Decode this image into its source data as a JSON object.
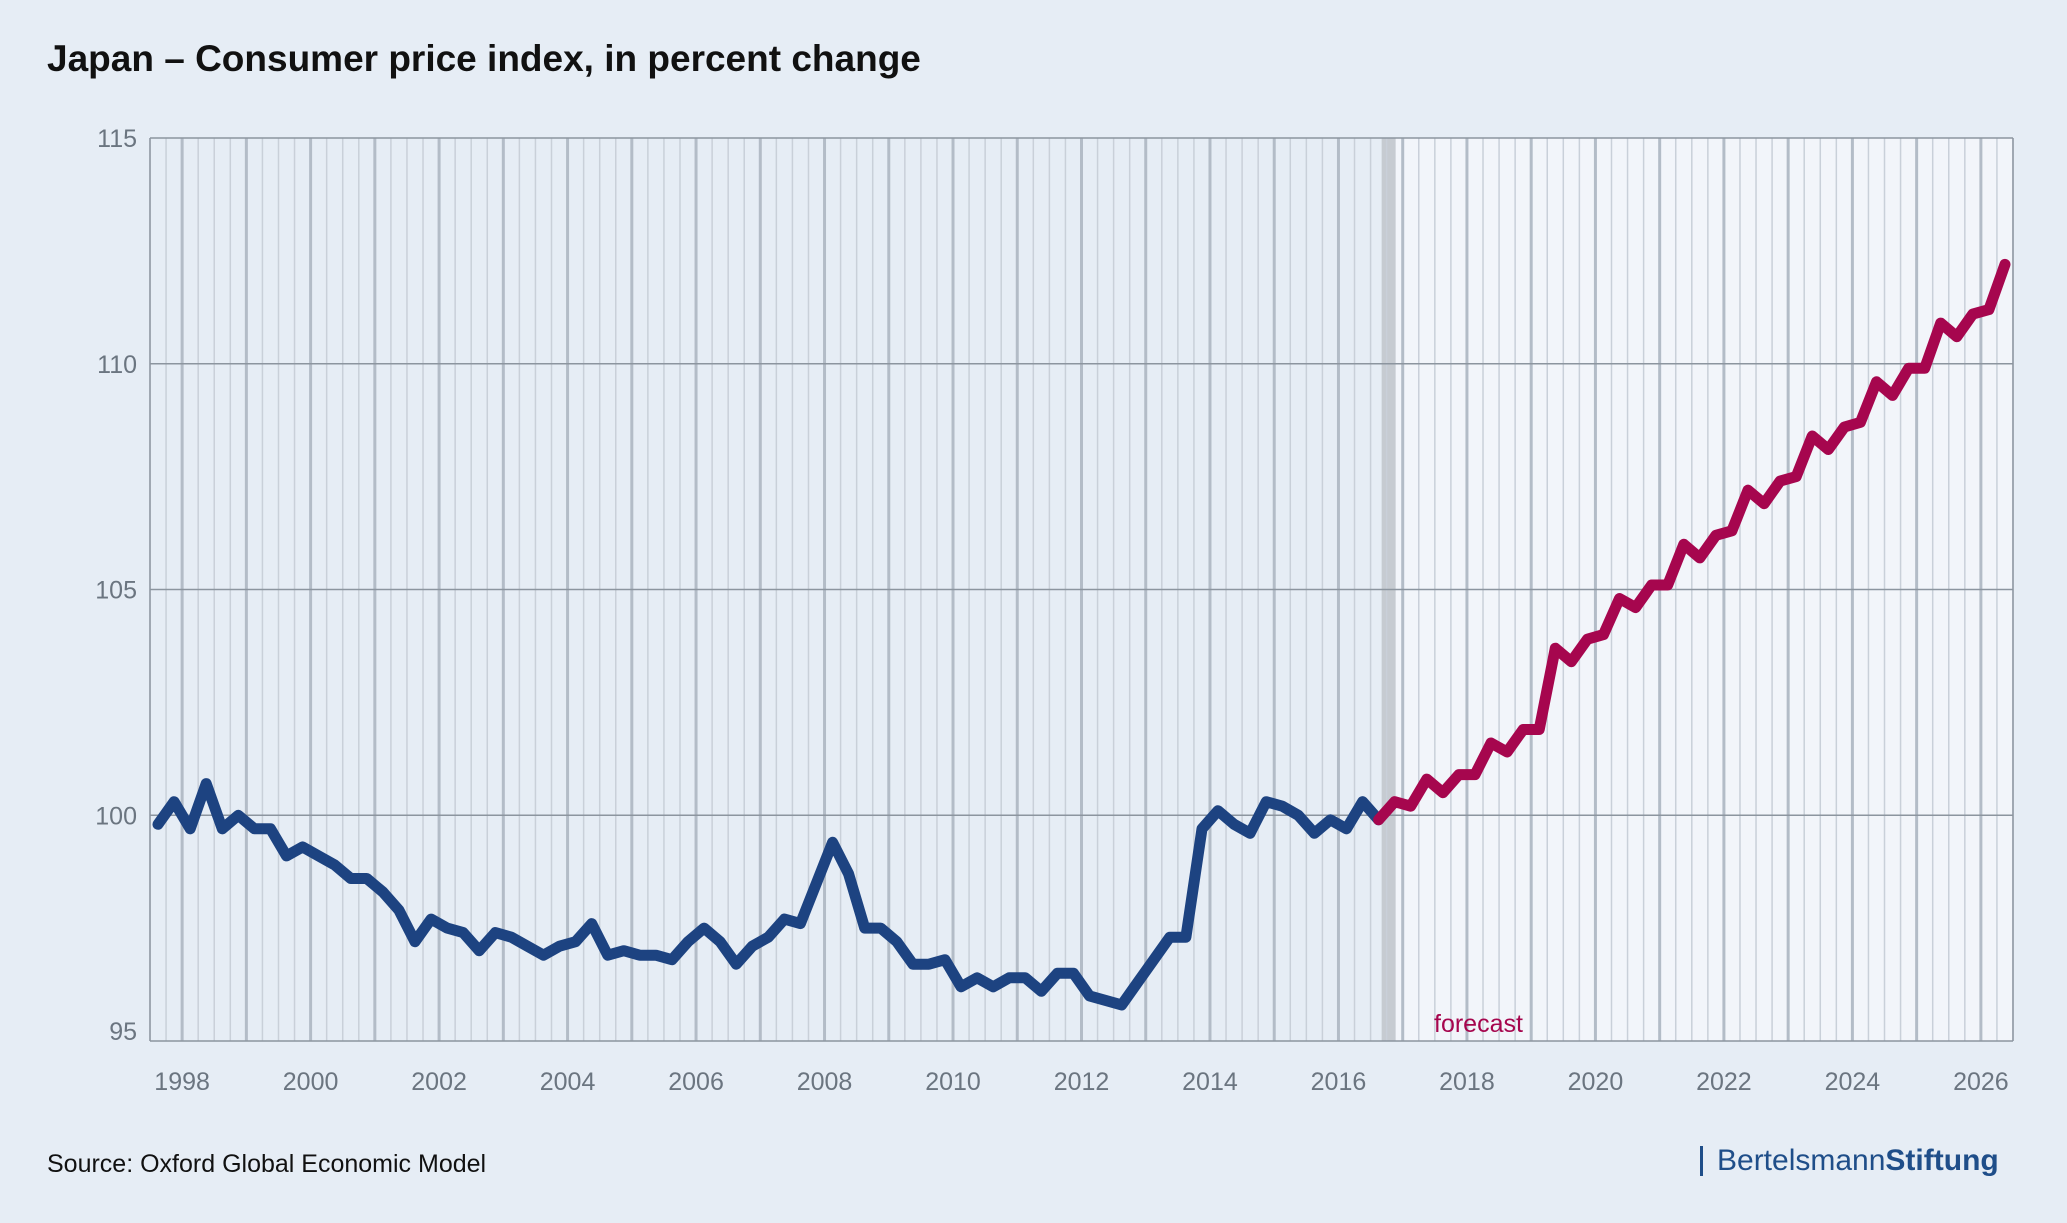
{
  "title": "Japan – Consumer price index, in percent change",
  "source": "Source: Oxford Global Economic Model",
  "brand": {
    "part1": "Bertelsmann",
    "part2": "Stiftung"
  },
  "colors": {
    "history": "#1d4381",
    "forecast": "#a6064e",
    "background": "#e6edf5",
    "forecast_background": "#f2f5fa"
  },
  "chart_data": {
    "type": "line",
    "ylim": [
      95,
      115
    ],
    "yticks": [
      95,
      100,
      105,
      110,
      115
    ],
    "xlim": [
      1997.5,
      2026.5
    ],
    "xticks": [
      1998,
      2000,
      2002,
      2004,
      2006,
      2008,
      2010,
      2012,
      2014,
      2016,
      2018,
      2020,
      2022,
      2024,
      2026
    ],
    "forecast_start": 2016.75,
    "forecast_label": "forecast",
    "grid": true,
    "series": [
      {
        "segment": "history",
        "x": [
          1997.625,
          1997.875,
          1998.125,
          1998.375,
          1998.625,
          1998.875,
          1999.125,
          1999.375,
          1999.625,
          1999.875,
          2000.125,
          2000.375,
          2000.625,
          2000.875,
          2001.125,
          2001.375,
          2001.625,
          2001.875,
          2002.125,
          2002.375,
          2002.625,
          2002.875,
          2003.125,
          2003.375,
          2003.625,
          2003.875,
          2004.125,
          2004.375,
          2004.625,
          2004.875,
          2005.125,
          2005.375,
          2005.625,
          2005.875,
          2006.125,
          2006.375,
          2006.625,
          2006.875,
          2007.125,
          2007.375,
          2007.625,
          2007.875,
          2008.125,
          2008.375,
          2008.625,
          2008.875,
          2009.125,
          2009.375,
          2009.625,
          2009.875,
          2010.125,
          2010.375,
          2010.625,
          2010.875,
          2011.125,
          2011.375,
          2011.625,
          2011.875,
          2012.125,
          2012.375,
          2012.625,
          2012.875,
          2013.125,
          2013.375,
          2013.625,
          2013.875,
          2014.125,
          2014.375,
          2014.625,
          2014.875,
          2015.125,
          2015.375,
          2015.625,
          2015.875,
          2016.125,
          2016.375,
          2016.625
        ],
        "y": [
          99.8,
          100.3,
          99.7,
          100.7,
          99.7,
          100.0,
          99.7,
          99.7,
          99.1,
          99.3,
          99.1,
          98.9,
          98.6,
          98.6,
          98.3,
          97.9,
          97.2,
          97.7,
          97.5,
          97.4,
          97.0,
          97.4,
          97.3,
          97.1,
          96.9,
          97.1,
          97.2,
          97.6,
          96.9,
          97.0,
          96.9,
          96.9,
          96.8,
          97.2,
          97.5,
          97.2,
          96.7,
          97.1,
          97.3,
          97.7,
          97.6,
          98.5,
          99.4,
          98.7,
          97.5,
          97.5,
          97.2,
          96.7,
          96.7,
          96.8,
          96.2,
          96.4,
          96.2,
          96.4,
          96.4,
          96.1,
          96.5,
          96.5,
          96.0,
          95.9,
          95.8,
          96.3,
          96.8,
          97.3,
          97.3,
          99.7,
          100.1,
          99.8,
          99.6,
          100.3,
          100.2,
          100.0,
          99.6,
          99.9,
          99.7,
          100.3,
          99.9
        ]
      },
      {
        "segment": "forecast",
        "x": [
          2016.625,
          2016.875,
          2017.125,
          2017.375,
          2017.625,
          2017.875,
          2018.125,
          2018.375,
          2018.625,
          2018.875,
          2019.125,
          2019.375,
          2019.625,
          2019.875,
          2020.125,
          2020.375,
          2020.625,
          2020.875,
          2021.125,
          2021.375,
          2021.625,
          2021.875,
          2022.125,
          2022.375,
          2022.625,
          2022.875,
          2023.125,
          2023.375,
          2023.625,
          2023.875,
          2024.125,
          2024.375,
          2024.625,
          2024.875,
          2025.125,
          2025.375,
          2025.625,
          2025.875,
          2026.125,
          2026.375
        ],
        "y": [
          99.9,
          100.3,
          100.2,
          100.8,
          100.5,
          100.9,
          100.9,
          101.6,
          101.4,
          101.9,
          101.9,
          103.7,
          103.4,
          103.9,
          104.0,
          104.8,
          104.6,
          105.1,
          105.1,
          106.0,
          105.7,
          106.2,
          106.3,
          107.2,
          106.9,
          107.4,
          107.5,
          108.4,
          108.1,
          108.6,
          108.7,
          109.6,
          109.3,
          109.9,
          109.9,
          110.9,
          110.6,
          111.1,
          111.2,
          112.2
        ]
      }
    ]
  }
}
